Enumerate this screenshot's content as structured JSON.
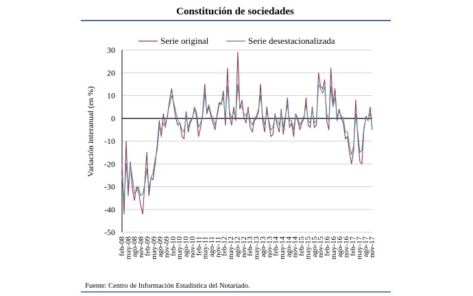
{
  "chart_data": {
    "type": "line",
    "title": "Constitución de sociedades",
    "ylabel": "Variación interanual (en %)",
    "xlabel": "",
    "source": "Fuente: Centro de Información Estadística del Notariado.",
    "ylim": [
      -50,
      30
    ],
    "yticks": [
      30,
      20,
      10,
      0,
      -10,
      -20,
      -30,
      -40,
      -50
    ],
    "grid": true,
    "legend_position": "top",
    "colors": {
      "original": "#8B3A52",
      "desestacionalizada": "#5E7F91",
      "grid": "#cfcfcf",
      "title_rule": "#1F3864"
    },
    "x_tick_labels": [
      "feb-08",
      "may-08",
      "ago-08",
      "nov-08",
      "feb-09",
      "may-09",
      "ago-09",
      "nov-09",
      "feb-10",
      "may-10",
      "ago-10",
      "nov-10",
      "feb-11",
      "may-11",
      "ago-11",
      "nov-11",
      "feb-12",
      "may-12",
      "ago-12",
      "nov-12",
      "feb-13",
      "may-13",
      "ago-13",
      "nov-13",
      "feb-14",
      "may-14",
      "ago-14",
      "nov-14",
      "feb-15",
      "may-15",
      "ago-15",
      "nov-15",
      "feb-16",
      "may-16",
      "ago-16",
      "nov-16",
      "feb-17",
      "may-17",
      "ago-17",
      "nov-17"
    ],
    "series": [
      {
        "name": "Serie original",
        "values": [
          -20,
          -42,
          -10,
          -34,
          -19,
          -31,
          -36,
          -30,
          -32,
          -38,
          -42,
          -28,
          -15,
          -34,
          -26,
          -27,
          -20,
          -12,
          -1,
          -8,
          2,
          -3,
          1,
          8,
          13,
          6,
          0,
          -3,
          -2,
          -8,
          -9,
          3,
          -6,
          -2,
          0,
          4,
          1,
          -8,
          -4,
          2,
          15,
          2,
          5,
          1,
          -2,
          -5,
          2,
          7,
          6,
          12,
          -3,
          22,
          1,
          -3,
          5,
          -1,
          29,
          4,
          8,
          0,
          -2,
          5,
          -4,
          -6,
          -1,
          0,
          3,
          15,
          -1,
          -6,
          5,
          -2,
          -8,
          -7,
          2,
          -3,
          -6,
          4,
          -7,
          0,
          9,
          -4,
          -2,
          -8,
          2,
          -1,
          -5,
          -2,
          0,
          9,
          -3,
          -4,
          5,
          -4,
          -3,
          20,
          14,
          13,
          17,
          -1,
          -5,
          22,
          6,
          13,
          -1,
          4,
          0,
          -2,
          -9,
          -8,
          -15,
          -20,
          -14,
          8,
          -8,
          -19,
          -20,
          -5,
          1,
          -1,
          5,
          -5
        ],
        "color": "#8B3A52"
      },
      {
        "name": "Serie desestacionalizada",
        "values": [
          -25,
          -36,
          -20,
          -30,
          -20,
          -26,
          -33,
          -32,
          -30,
          -34,
          -33,
          -29,
          -22,
          -31,
          -26,
          -24,
          -18,
          -14,
          -4,
          -5,
          -2,
          -4,
          2,
          6,
          10,
          7,
          3,
          -1,
          -2,
          -5,
          -6,
          1,
          -4,
          -1,
          0,
          5,
          3,
          -4,
          -2,
          1,
          11,
          3,
          6,
          2,
          0,
          -3,
          1,
          6,
          7,
          9,
          0,
          14,
          3,
          0,
          3,
          1,
          15,
          6,
          5,
          2,
          1,
          4,
          -1,
          -3,
          0,
          1,
          4,
          10,
          1,
          -3,
          3,
          -1,
          -5,
          -4,
          1,
          -1,
          -3,
          3,
          -4,
          1,
          6,
          -1,
          -1,
          -5,
          2,
          0,
          -3,
          -1,
          1,
          6,
          -1,
          -2,
          4,
          -2,
          -1,
          15,
          13,
          11,
          14,
          2,
          -1,
          14,
          5,
          9,
          1,
          3,
          1,
          0,
          -6,
          -6,
          -12,
          -16,
          -12,
          2,
          -6,
          -15,
          -14,
          -4,
          0,
          0,
          2,
          -4
        ],
        "color": "#5E7F91"
      }
    ]
  }
}
